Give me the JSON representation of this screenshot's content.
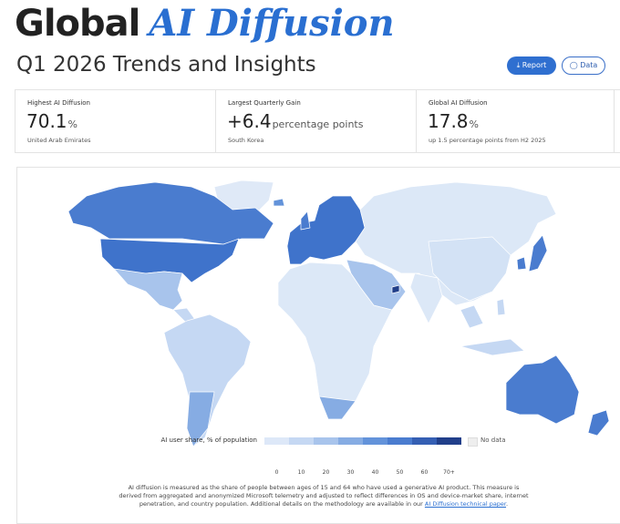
{
  "header": {
    "title": "Global",
    "title_highlight": "AI Diffusion",
    "subtitle": "Q1 2026 Trends and Insights",
    "buttons": [
      "Report",
      "Data"
    ]
  },
  "stats": [
    {
      "label": "Highest AI Diffusion",
      "value": "70.1",
      "unit": "%",
      "note": "United Arab Emirates"
    },
    {
      "label": "Largest Quarterly Gain",
      "value": "+6.4",
      "unit": "percentage points",
      "note": "South Korea"
    },
    {
      "label": "Global AI Diffusion",
      "value": "17.8",
      "unit": "%",
      "note": "up 1.5 percentage points from H2 2025"
    }
  ],
  "legend": {
    "title": "AI user share, % of population",
    "ticks": [
      0,
      10,
      20,
      30,
      40,
      50,
      60,
      "70+"
    ],
    "colors": [
      "#dde8f8",
      "#c5d8f3",
      "#a8c4ec",
      "#86ace3",
      "#6393da",
      "#4a7ccf",
      "#355fb3",
      "#213f8a"
    ],
    "no_data": "No data"
  },
  "footnote": {
    "text": "AI diffusion is measured as the share of people between ages of 15 and 64 who have used a generative AI product. This measure is derived from aggregated and anonymized Microsoft telemetry and adjusted to reflect differences in OS and device-market share, internet penetration, and country population. Additional details on the methodology are available in our ",
    "link": "AI Diffusion technical paper",
    "end": "."
  }
}
